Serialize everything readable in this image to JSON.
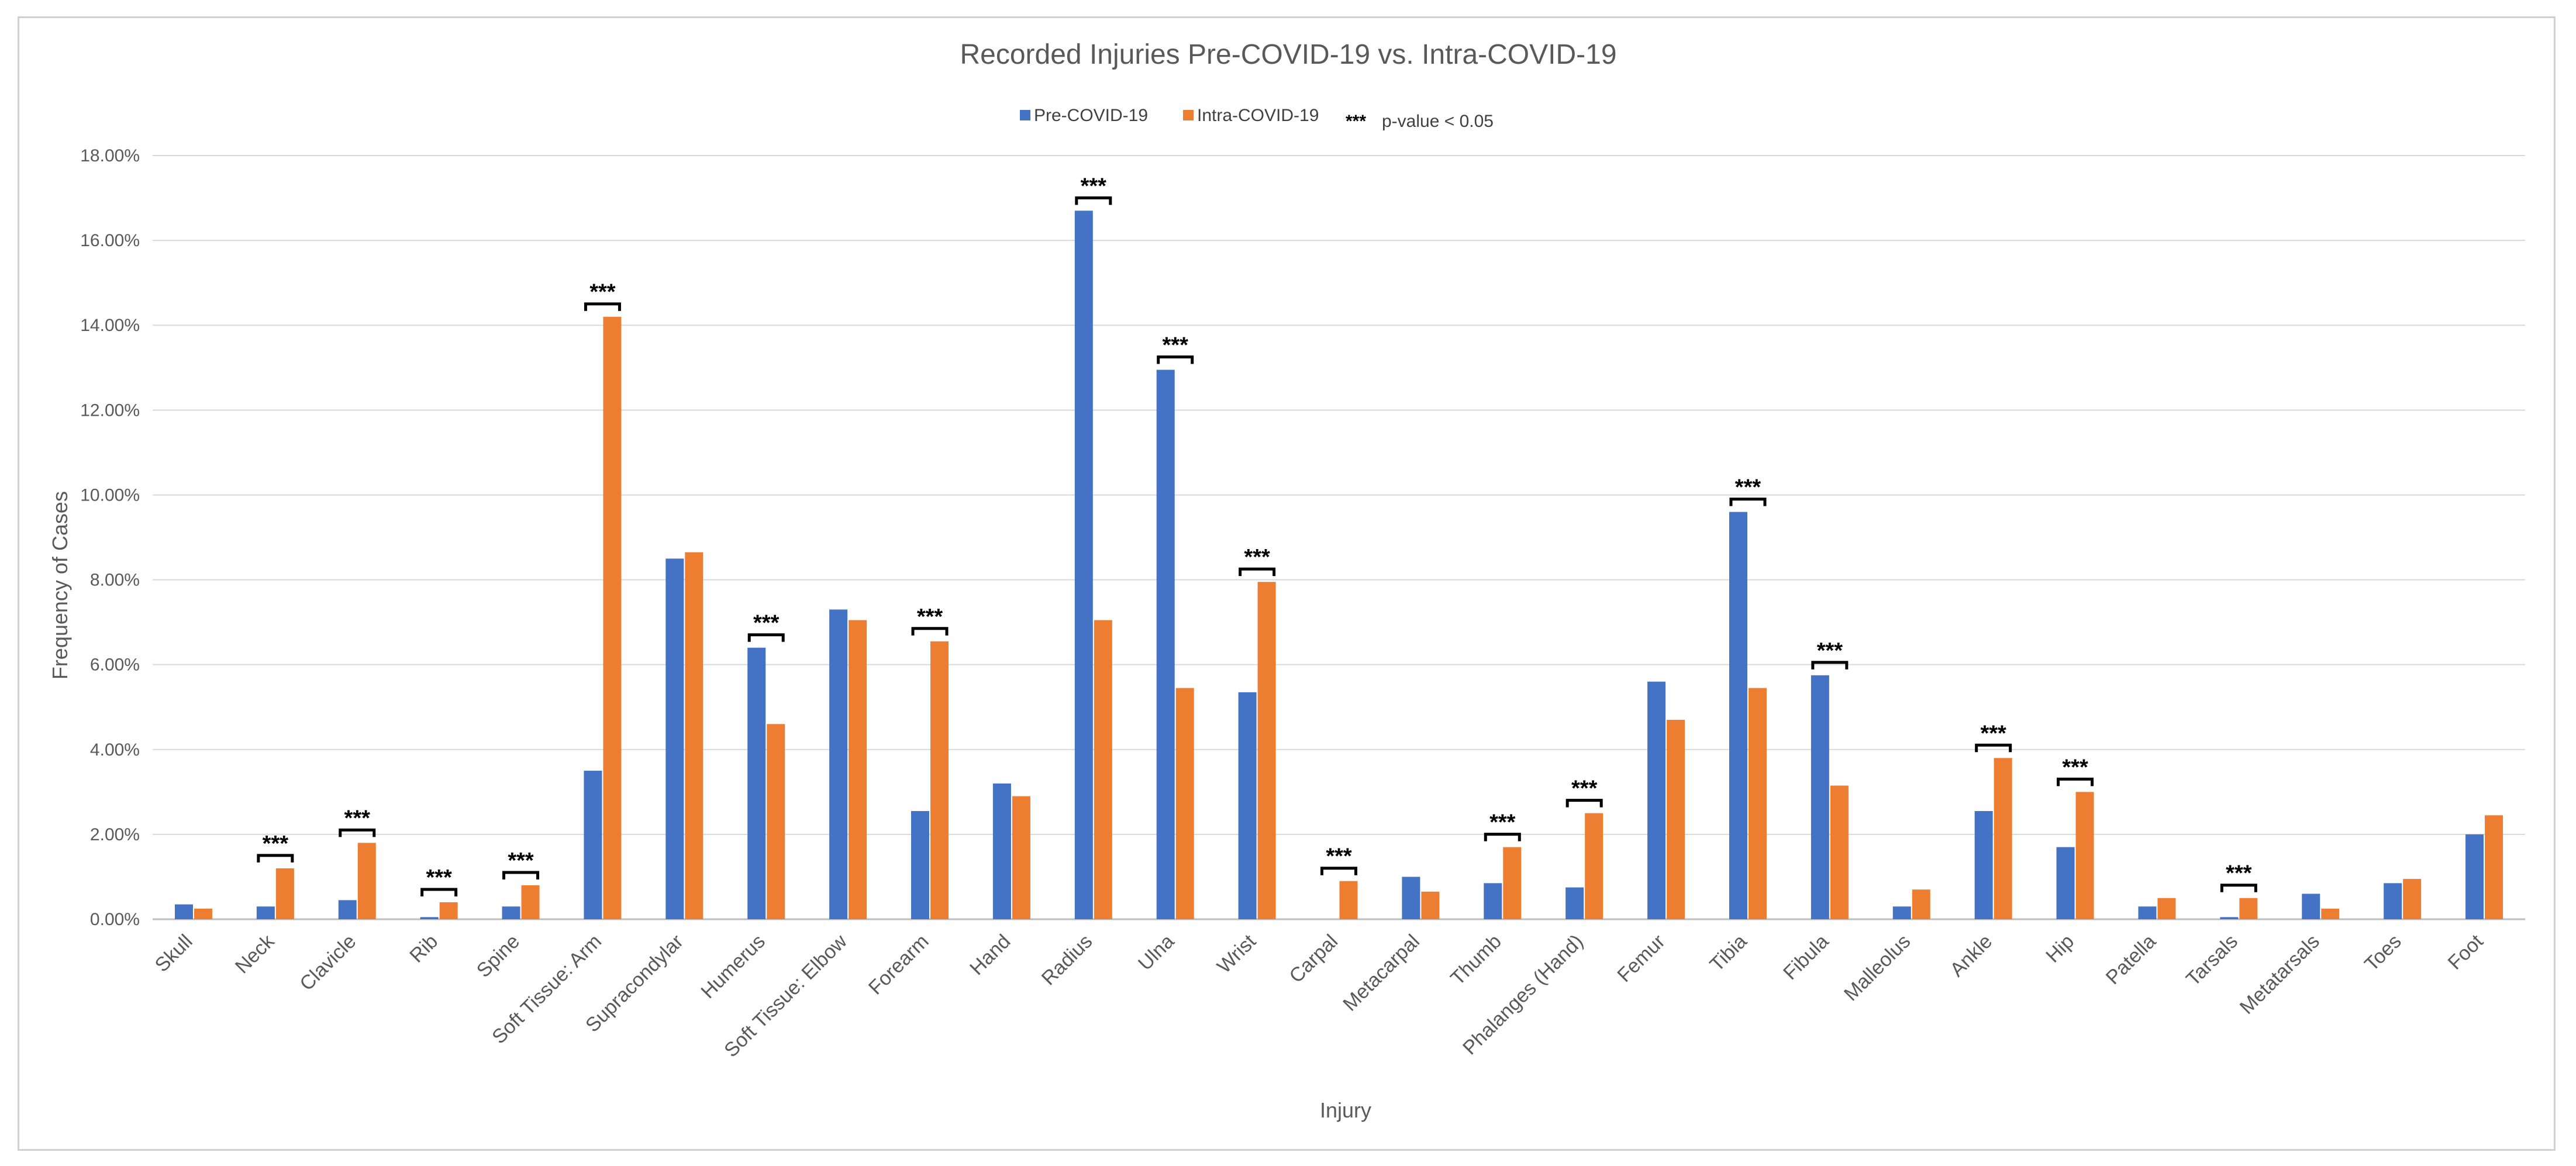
{
  "chart_data": {
    "type": "bar",
    "title": "Recorded Injuries Pre-COVID-19 vs. Intra-COVID-19",
    "xlabel": "Injury",
    "ylabel": "Frequency of Cases",
    "ylim": [
      0,
      18
    ],
    "yticks": [
      "0.00%",
      "2.00%",
      "4.00%",
      "6.00%",
      "8.00%",
      "10.00%",
      "12.00%",
      "14.00%",
      "16.00%",
      "18.00%"
    ],
    "categories": [
      "Skull",
      "Neck",
      "Clavicle",
      "Rib",
      "Spine",
      "Soft Tissue: Arm",
      "Supracondylar",
      "Humerus",
      "Soft Tissue: Elbow",
      "Forearm",
      "Hand",
      "Radius",
      "Ulna",
      "Wrist",
      "Carpal",
      "Metacarpal",
      "Thumb",
      "Phalanges (Hand)",
      "Femur",
      "Tibia",
      "Fibula",
      "Malleolus",
      "Ankle",
      "Hip",
      "Patella",
      "Tarsals",
      "Metatarsals",
      "Toes",
      "Foot"
    ],
    "series": [
      {
        "name": "Pre-COVID-19",
        "color": "#4472c4",
        "values": [
          0.35,
          0.3,
          0.45,
          0.05,
          0.3,
          3.5,
          8.5,
          6.4,
          7.3,
          2.55,
          3.2,
          16.7,
          12.95,
          5.35,
          0.0,
          1.0,
          0.85,
          0.75,
          5.6,
          9.6,
          5.75,
          0.3,
          2.55,
          1.7,
          0.3,
          0.05,
          0.6,
          0.85,
          2.0
        ]
      },
      {
        "name": "Intra-COVID-19",
        "color": "#ed7d31",
        "values": [
          0.25,
          1.2,
          1.8,
          0.4,
          0.8,
          14.2,
          8.65,
          4.6,
          7.05,
          6.55,
          2.9,
          7.05,
          5.45,
          7.95,
          0.9,
          0.65,
          1.7,
          2.5,
          4.7,
          5.45,
          3.15,
          0.7,
          3.8,
          3.0,
          0.5,
          0.5,
          0.25,
          0.95,
          2.45
        ]
      }
    ],
    "significant": [
      false,
      true,
      true,
      true,
      true,
      true,
      false,
      true,
      false,
      true,
      false,
      true,
      true,
      true,
      true,
      false,
      true,
      true,
      false,
      true,
      true,
      false,
      true,
      true,
      false,
      true,
      false,
      false,
      false
    ],
    "significance_marker": "***",
    "legend": {
      "position": "top-center",
      "items": [
        "Pre-COVID-19",
        "Intra-COVID-19"
      ],
      "significance_label": "p-value < 0.05"
    },
    "grid": true
  }
}
